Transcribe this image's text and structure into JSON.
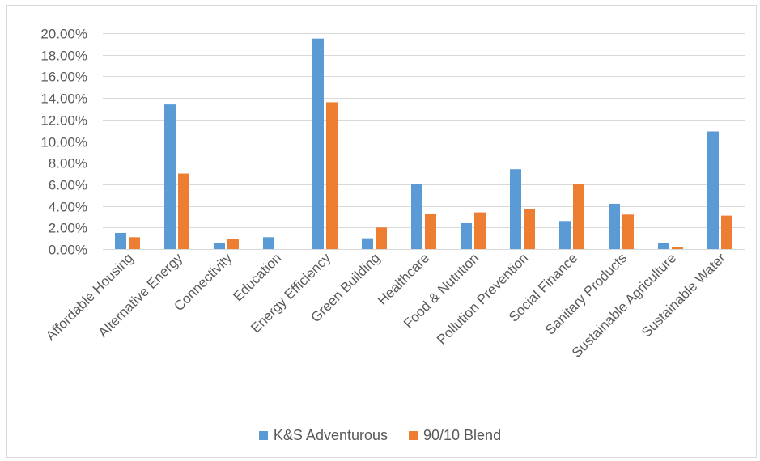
{
  "colors": {
    "series1": "#5b9bd5",
    "series2": "#ed7d31",
    "grid": "#d9d9d9",
    "text": "#595959"
  },
  "chart_data": {
    "type": "bar",
    "title": "",
    "xlabel": "",
    "ylabel": "",
    "ylim": [
      0,
      0.2
    ],
    "y_ticks": [
      "0.00%",
      "2.00%",
      "4.00%",
      "6.00%",
      "8.00%",
      "10.00%",
      "12.00%",
      "14.00%",
      "16.00%",
      "18.00%",
      "20.00%"
    ],
    "grid": true,
    "legend_position": "bottom",
    "categories": [
      "Affordable Housing",
      "Alternative Energy",
      "Connectivity",
      "Education",
      "Energy Efficiency",
      "Green Building",
      "Healthcare",
      "Food & Nutrition",
      "Pollution Prevention",
      "Social Finance",
      "Sanitary Products",
      "Sustainable Agriculture",
      "Sustainable Water"
    ],
    "series": [
      {
        "name": "K&S Adventurous",
        "values": [
          0.015,
          0.134,
          0.006,
          0.011,
          0.195,
          0.01,
          0.06,
          0.024,
          0.074,
          0.026,
          0.042,
          0.006,
          0.109
        ]
      },
      {
        "name": "90/10 Blend",
        "values": [
          0.011,
          0.07,
          0.009,
          0.0,
          0.136,
          0.02,
          0.033,
          0.034,
          0.037,
          0.06,
          0.032,
          0.002,
          0.031
        ]
      }
    ]
  }
}
